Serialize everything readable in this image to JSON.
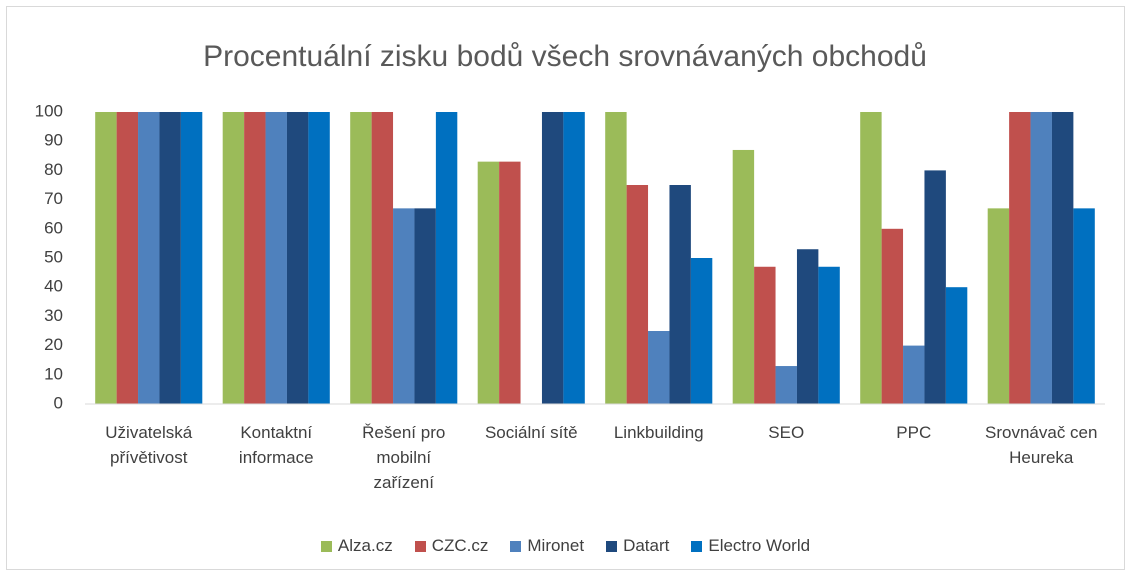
{
  "chart_data": {
    "type": "bar",
    "title": "Procentuální zisku bodů všech srovnávaných obchodů",
    "categories": [
      "Uživatelská přívětivost",
      "Kontaktní informace",
      "Řešení pro mobilní zařízení",
      "Sociální sítě",
      "Linkbuilding",
      "SEO",
      "PPC",
      "Srovnávač cen Heureka"
    ],
    "series": [
      {
        "name": "Alza.cz",
        "color": "#9bbb59",
        "values": [
          100,
          100,
          100,
          83,
          100,
          87,
          100,
          67
        ]
      },
      {
        "name": "CZC.cz",
        "color": "#c0504d",
        "values": [
          100,
          100,
          100,
          83,
          75,
          47,
          60,
          100
        ]
      },
      {
        "name": "Mironet",
        "color": "#4f81bd",
        "values": [
          100,
          100,
          67,
          0,
          25,
          13,
          20,
          100
        ]
      },
      {
        "name": "Datart",
        "color": "#1f497d",
        "values": [
          100,
          100,
          67,
          100,
          75,
          53,
          80,
          100
        ]
      },
      {
        "name": "Electro World",
        "color": "#0070c0",
        "values": [
          100,
          100,
          100,
          100,
          50,
          47,
          40,
          67
        ]
      }
    ],
    "ylim": [
      0,
      100
    ],
    "yticks": [
      0,
      10,
      20,
      30,
      40,
      50,
      60,
      70,
      80,
      90,
      100
    ],
    "grid": false,
    "legend": "bottom"
  }
}
